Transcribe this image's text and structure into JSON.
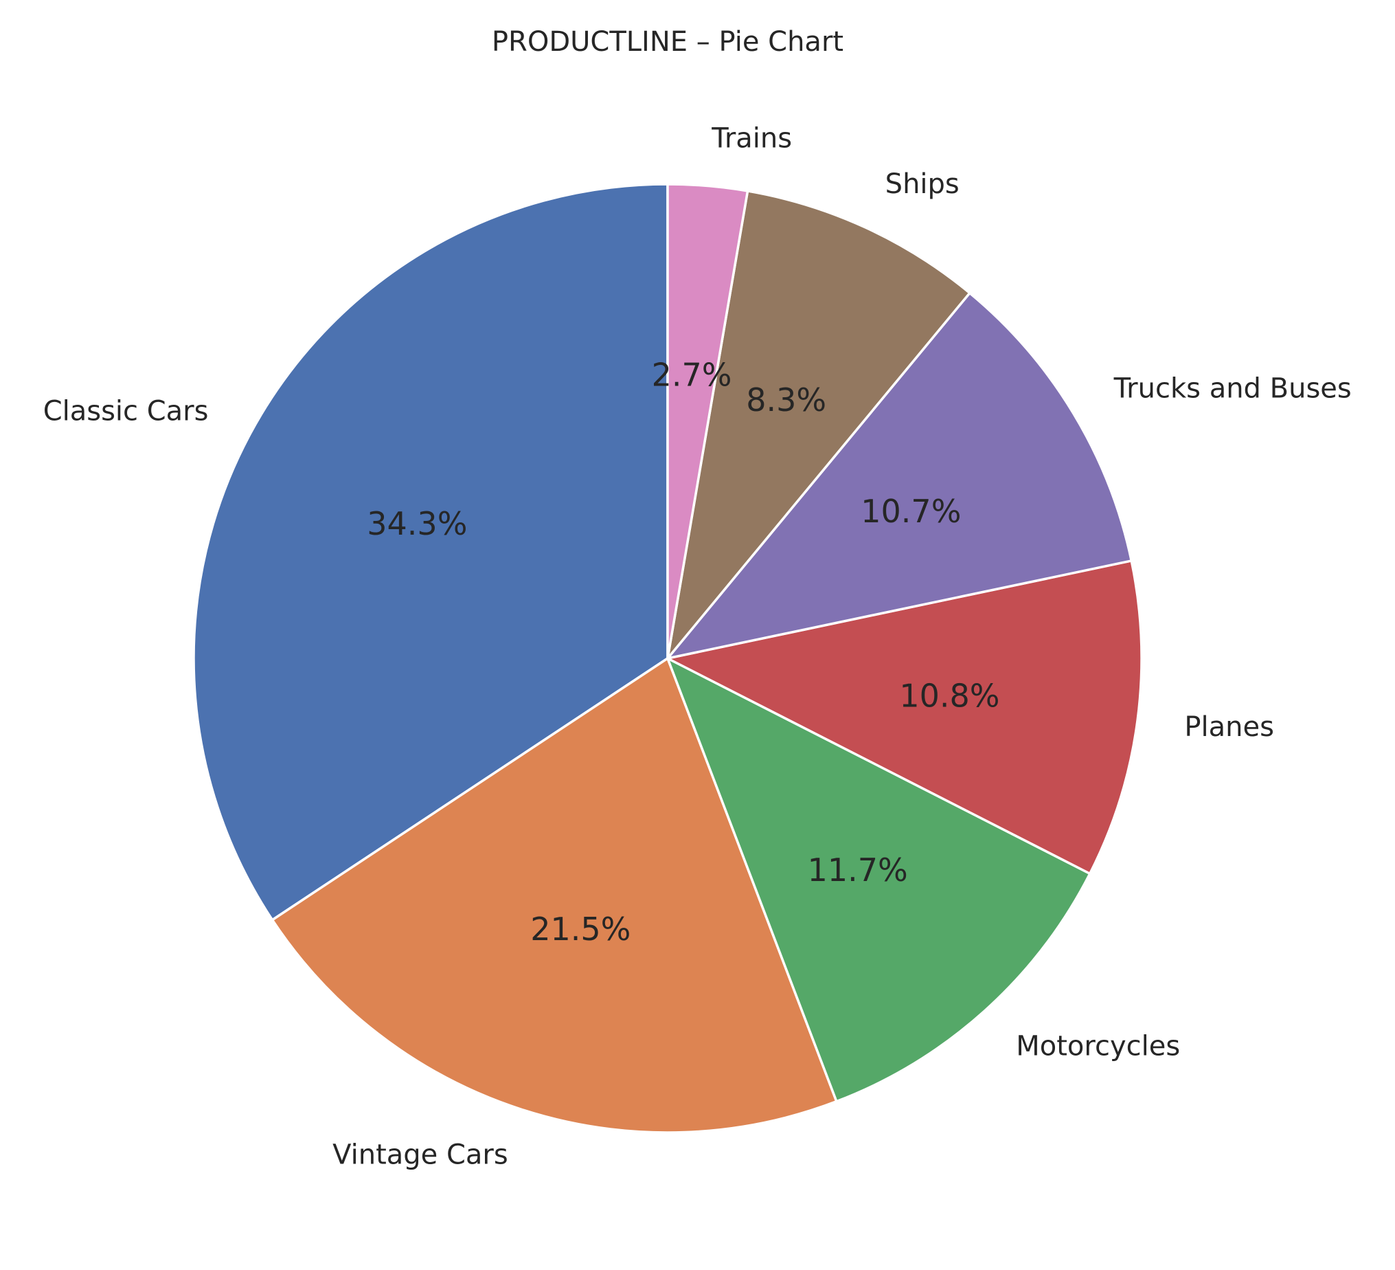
{
  "chart_data": {
    "type": "pie",
    "title": "PRODUCTLINE – Pie Chart",
    "start_angle": "12 o'clock",
    "direction": "counterclockwise",
    "slices": [
      {
        "label": "Classic Cars",
        "value": 34.3,
        "pct_label": "34.3%",
        "color": "#4c72b0"
      },
      {
        "label": "Vintage Cars",
        "value": 21.5,
        "pct_label": "21.5%",
        "color": "#dd8452"
      },
      {
        "label": "Motorcycles",
        "value": 11.7,
        "pct_label": "11.7%",
        "color": "#55a868"
      },
      {
        "label": "Planes",
        "value": 10.8,
        "pct_label": "10.8%",
        "color": "#c44e52"
      },
      {
        "label": "Trucks and Buses",
        "value": 10.7,
        "pct_label": "10.7%",
        "color": "#8172b3"
      },
      {
        "label": "Ships",
        "value": 8.3,
        "pct_label": "8.3%",
        "color": "#937860"
      },
      {
        "label": "Trains",
        "value": 2.7,
        "pct_label": "2.7%",
        "color": "#da8bc3"
      }
    ]
  }
}
